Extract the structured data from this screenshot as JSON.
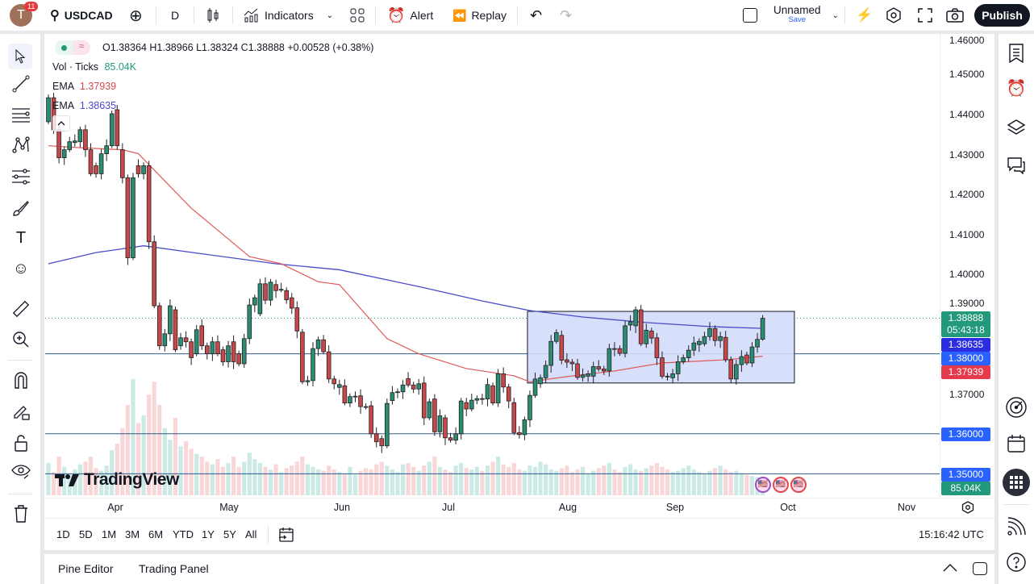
{
  "topbar": {
    "notifications": "11",
    "avatar_letter": "T",
    "symbol": "USDCAD",
    "interval": "D",
    "indicators": "Indicators",
    "alert": "Alert",
    "replay": "Replay",
    "layout_name": "Unnamed",
    "layout_save": "Save",
    "publish": "Publish"
  },
  "legend": {
    "ohlc": "O1.38364 H1.38966 L1.38324 C1.38888 +0.00528 (+0.38%)",
    "vol_label": "Vol · Ticks",
    "vol_value": "85.04K",
    "ema1_label": "EMA",
    "ema1_value": "1.37939",
    "ema2_label": "EMA",
    "ema2_value": "1.38635"
  },
  "price_axis": {
    "ticks": [
      "1.46000",
      "1.45000",
      "1.44000",
      "1.43000",
      "1.42000",
      "1.41000",
      "1.40000",
      "1.39000",
      "1.37000"
    ],
    "labels": {
      "last": "1.38888",
      "countdown": "05:43:18",
      "ema_blue": "1.38635",
      "line_138": "1.38000",
      "ema_red": "1.37939",
      "line_136": "1.36000",
      "line_135": "1.35000",
      "volume": "85.04K"
    }
  },
  "time_axis": {
    "months": [
      "Apr",
      "May",
      "Jun",
      "Jul",
      "Aug",
      "Sep",
      "Oct",
      "Nov"
    ]
  },
  "range_bar": {
    "ranges": [
      "1D",
      "5D",
      "1M",
      "3M",
      "6M",
      "YTD",
      "1Y",
      "5Y",
      "All"
    ],
    "clock": "15:16:42 UTC"
  },
  "bottom": {
    "pine_editor": "Pine Editor",
    "trading_panel": "Trading Panel"
  },
  "watermark": "TradingView",
  "colors": {
    "up": "#2a8c72",
    "down": "#c8474a",
    "ema_red": "#e05a5a",
    "ema_blue": "#4b4bc8",
    "hline": "#2f5d8a",
    "rect_fill": "#d3dcfb",
    "last_price": "#22997a",
    "label_blue": "#2962ff"
  },
  "chart_data": {
    "type": "candlestick",
    "symbol": "USDCAD",
    "interval": "D",
    "ylim": [
      1.345,
      1.461
    ],
    "candles_oc": [
      [
        1.438,
        1.444
      ],
      [
        1.444,
        1.436
      ],
      [
        1.436,
        1.429
      ],
      [
        1.429,
        1.431
      ],
      [
        1.431,
        1.433
      ],
      [
        1.4328,
        1.4332
      ],
      [
        1.433,
        1.436
      ],
      [
        1.436,
        1.431
      ],
      [
        1.431,
        1.425
      ],
      [
        1.427,
        1.425
      ],
      [
        1.425,
        1.43
      ],
      [
        1.43,
        1.432
      ],
      [
        1.432,
        1.44
      ],
      [
        1.441,
        1.432
      ],
      [
        1.431,
        1.424
      ],
      [
        1.424,
        1.404
      ],
      [
        1.404,
        1.424
      ],
      [
        1.427,
        1.425
      ],
      [
        1.425,
        1.427
      ],
      [
        1.427,
        1.408
      ],
      [
        1.408,
        1.392
      ],
      [
        1.392,
        1.382
      ],
      [
        1.382,
        1.385
      ],
      [
        1.385,
        1.392
      ],
      [
        1.391,
        1.381
      ],
      [
        1.382,
        1.384
      ],
      [
        1.384,
        1.383
      ],
      [
        1.383,
        1.379
      ],
      [
        1.38,
        1.386
      ],
      [
        1.387,
        1.382
      ],
      [
        1.382,
        1.38
      ],
      [
        1.38,
        1.383
      ],
      [
        1.383,
        1.38
      ],
      [
        1.381,
        1.378
      ],
      [
        1.378,
        1.382
      ],
      [
        1.383,
        1.378
      ],
      [
        1.38,
        1.3775
      ],
      [
        1.3775,
        1.3838
      ],
      [
        1.3838,
        1.3922
      ],
      [
        1.3922,
        1.394
      ],
      [
        1.39,
        1.3975
      ],
      [
        1.3975,
        1.3934
      ],
      [
        1.3934,
        1.3979
      ],
      [
        1.3973,
        1.3958
      ],
      [
        1.396,
        1.3961
      ],
      [
        1.3958,
        1.3935
      ],
      [
        1.394,
        1.3914
      ],
      [
        1.3915,
        1.3857
      ],
      [
        1.3854,
        1.373
      ],
      [
        1.373,
        1.3733
      ],
      [
        1.3733,
        1.3813
      ],
      [
        1.3813,
        1.3835
      ],
      [
        1.3835,
        1.3805
      ],
      [
        1.3805,
        1.3737
      ],
      [
        1.3737,
        1.3725
      ],
      [
        1.3716,
        1.3723
      ],
      [
        1.372,
        1.3677
      ],
      [
        1.3677,
        1.3693
      ],
      [
        1.3693,
        1.3694
      ],
      [
        1.3695,
        1.3668
      ],
      [
        1.3668,
        1.3667
      ],
      [
        1.367,
        1.36
      ],
      [
        1.36,
        1.358
      ],
      [
        1.3588,
        1.357
      ],
      [
        1.357,
        1.3676
      ],
      [
        1.3683,
        1.3703
      ],
      [
        1.3703,
        1.3705
      ],
      [
        1.3705,
        1.3722
      ],
      [
        1.3738,
        1.3722
      ],
      [
        1.3722,
        1.3712
      ],
      [
        1.3712,
        1.3725
      ],
      [
        1.3727,
        1.364
      ],
      [
        1.364,
        1.368
      ],
      [
        1.3687,
        1.3605
      ],
      [
        1.3605,
        1.3645
      ],
      [
        1.364,
        1.359
      ],
      [
        1.359,
        1.3584
      ],
      [
        1.3584,
        1.36
      ],
      [
        1.36,
        1.3682
      ],
      [
        1.3678,
        1.3662
      ],
      [
        1.3662,
        1.3684
      ],
      [
        1.3684,
        1.3688
      ],
      [
        1.3688,
        1.3687
      ],
      [
        1.3687,
        1.3723
      ],
      [
        1.372,
        1.3677
      ],
      [
        1.3677,
        1.375
      ],
      [
        1.375,
        1.3717
      ],
      [
        1.3717,
        1.3682
      ],
      [
        1.3678,
        1.3603
      ],
      [
        1.3603,
        1.3598
      ],
      [
        1.3598,
        1.3635
      ],
      [
        1.3635,
        1.3696
      ],
      [
        1.3696,
        1.3737
      ],
      [
        1.3725,
        1.374
      ],
      [
        1.374,
        1.3771
      ],
      [
        1.3771,
        1.3831
      ],
      [
        1.3831,
        1.3853
      ],
      [
        1.3846,
        1.3784
      ],
      [
        1.3785,
        1.3779
      ],
      [
        1.3779,
        1.3775
      ],
      [
        1.3775,
        1.3741
      ],
      [
        1.3741,
        1.3747
      ],
      [
        1.3744,
        1.375
      ],
      [
        1.3744,
        1.3768
      ],
      [
        1.3768,
        1.3762
      ],
      [
        1.3762,
        1.3757
      ],
      [
        1.3757,
        1.3813
      ],
      [
        1.3813,
        1.3812
      ],
      [
        1.3813,
        1.3801
      ],
      [
        1.3801,
        1.387
      ],
      [
        1.3872,
        1.388
      ],
      [
        1.387,
        1.391
      ],
      [
        1.391,
        1.3825
      ],
      [
        1.3825,
        1.3859
      ],
      [
        1.3857,
        1.3839
      ],
      [
        1.384,
        1.379
      ],
      [
        1.379,
        1.3744
      ],
      [
        1.3744,
        1.3743
      ],
      [
        1.374,
        1.375
      ],
      [
        1.375,
        1.378
      ],
      [
        1.378,
        1.379
      ],
      [
        1.379,
        1.3809
      ],
      [
        1.3809,
        1.3827
      ],
      [
        1.3823,
        1.3831
      ],
      [
        1.3825,
        1.3843
      ],
      [
        1.3843,
        1.3863
      ],
      [
        1.3863,
        1.3833
      ],
      [
        1.3833,
        1.3843
      ],
      [
        1.3841,
        1.3785
      ],
      [
        1.3785,
        1.3737
      ],
      [
        1.3737,
        1.3773
      ],
      [
        1.3773,
        1.3793
      ],
      [
        1.3797,
        1.3777
      ],
      [
        1.3777,
        1.3817
      ],
      [
        1.3817,
        1.3836
      ],
      [
        1.38364,
        1.38888
      ]
    ],
    "last_candle": {
      "open": 1.38364,
      "high": 1.38966,
      "low": 1.38324,
      "close": 1.38888
    },
    "volume_k": [
      250,
      180,
      300,
      220,
      160,
      200,
      240,
      260,
      300,
      210,
      190,
      230,
      350,
      400,
      520,
      700,
      900,
      560,
      620,
      780,
      880,
      700,
      520,
      430,
      600,
      380,
      420,
      360,
      320,
      300,
      260,
      240,
      280,
      220,
      250,
      300,
      220,
      260,
      330,
      280,
      250,
      220,
      200,
      240,
      180,
      210,
      230,
      260,
      300,
      240,
      220,
      200,
      190,
      230,
      200,
      180,
      170,
      220,
      160,
      190,
      210,
      200,
      240,
      260,
      230,
      200,
      180,
      240,
      250,
      220,
      190,
      230,
      260,
      300,
      220,
      200,
      180,
      230,
      250,
      210,
      200,
      220,
      190,
      230,
      260,
      300,
      240,
      220,
      250,
      200,
      190,
      230,
      220,
      260,
      240,
      200,
      190,
      210,
      230,
      180,
      200,
      220,
      170,
      190,
      210,
      230,
      250,
      200,
      180,
      220,
      240,
      200,
      190,
      210,
      230,
      250,
      220,
      200,
      180,
      190,
      210,
      230,
      200,
      180,
      170,
      190,
      210,
      230,
      200,
      180,
      190,
      170,
      160,
      150,
      140,
      85.04
    ],
    "ema_red": [
      [
        0,
        1.432
      ],
      [
        6,
        1.4315
      ],
      [
        14,
        1.431
      ],
      [
        17,
        1.43
      ],
      [
        27,
        1.4164
      ],
      [
        38,
        1.4043
      ],
      [
        44,
        1.4025
      ],
      [
        51,
        1.398
      ],
      [
        55,
        1.3973
      ],
      [
        64,
        1.3838
      ],
      [
        70,
        1.38
      ],
      [
        79,
        1.3763
      ],
      [
        88,
        1.3745
      ],
      [
        91,
        1.373
      ],
      [
        98,
        1.3743
      ],
      [
        107,
        1.3757
      ],
      [
        116,
        1.3777
      ],
      [
        128,
        1.3785
      ],
      [
        135,
        1.37939
      ]
    ],
    "ema_blue": [
      [
        0,
        1.4025
      ],
      [
        9,
        1.4053
      ],
      [
        18,
        1.407
      ],
      [
        29,
        1.405
      ],
      [
        43,
        1.4025
      ],
      [
        55,
        1.401
      ],
      [
        70,
        1.3968
      ],
      [
        82,
        1.3932
      ],
      [
        91,
        1.3908
      ],
      [
        101,
        1.3892
      ],
      [
        113,
        1.3878
      ],
      [
        125,
        1.3868
      ],
      [
        135,
        1.38635
      ]
    ],
    "horizontal_lines": [
      1.38,
      1.36,
      1.35
    ],
    "rectangle": {
      "from_index": 91,
      "price_top": 1.3906,
      "price_bottom": 1.3727
    }
  }
}
